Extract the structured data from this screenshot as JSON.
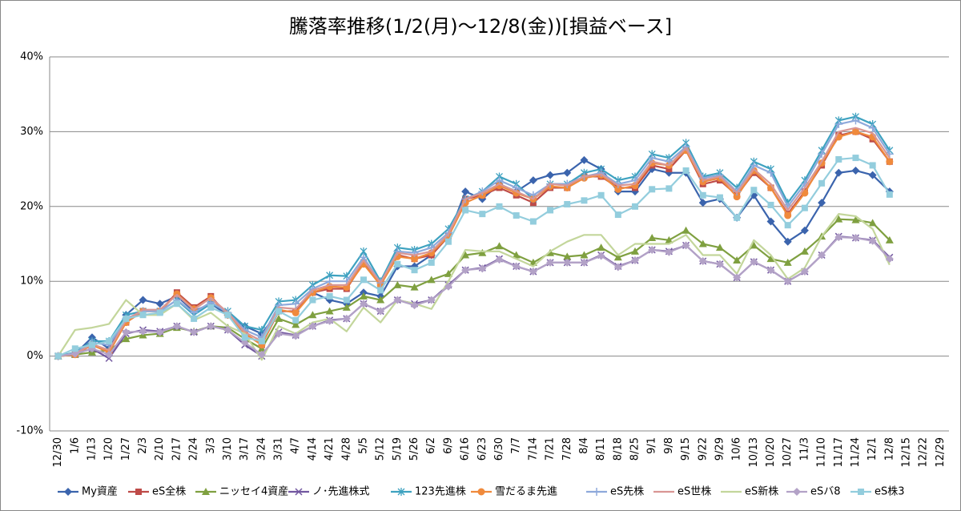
{
  "chart_data": {
    "type": "line",
    "title": "騰落率推移(1/2(月)～12/8(金))[損益ベース]",
    "categories": [
      "12/30",
      "1/6",
      "1/13",
      "1/20",
      "1/27",
      "2/3",
      "2/10",
      "2/17",
      "2/24",
      "3/3",
      "3/10",
      "3/17",
      "3/24",
      "3/31",
      "4/7",
      "4/14",
      "4/21",
      "4/28",
      "5/5",
      "5/12",
      "5/19",
      "5/26",
      "6/2",
      "6/9",
      "6/16",
      "6/23",
      "6/30",
      "7/7",
      "7/14",
      "7/21",
      "7/28",
      "8/4",
      "8/11",
      "8/18",
      "8/25",
      "9/1",
      "9/8",
      "9/15",
      "9/22",
      "9/29",
      "10/6",
      "10/13",
      "10/20",
      "10/27",
      "11/3",
      "11/10",
      "11/17",
      "11/24",
      "12/1",
      "12/8",
      "12/15",
      "12/22",
      "12/29"
    ],
    "ylim": [
      -10,
      40
    ],
    "yticks": [
      {
        "value": -10,
        "label": "-10%"
      },
      {
        "value": 0,
        "label": "0%"
      },
      {
        "value": 10,
        "label": "10%"
      },
      {
        "value": 20,
        "label": "20%"
      },
      {
        "value": 30,
        "label": "30%"
      },
      {
        "value": 40,
        "label": "40%"
      }
    ],
    "grid": true,
    "legend": "bottom",
    "series": [
      {
        "name": "My資産",
        "color": "#3b64ad",
        "marker": "diamond",
        "values": [
          0,
          0.3,
          2.5,
          1.0,
          5.5,
          7.5,
          7.0,
          8.0,
          6.0,
          7.0,
          5.5,
          4.0,
          3.0,
          6.0,
          6.0,
          8.5,
          7.5,
          7.0,
          8.5,
          8.0,
          12.0,
          12.0,
          13.5,
          16.0,
          22.0,
          21.0,
          23.0,
          22.0,
          23.5,
          24.2,
          24.5,
          26.2,
          25.0,
          22.0,
          22.0,
          25.0,
          24.5,
          24.5,
          20.5,
          21.0,
          18.5,
          21.5,
          18.0,
          15.3,
          16.8,
          20.5,
          24.5,
          24.8,
          24.2,
          22.0,
          null,
          null,
          null
        ]
      },
      {
        "name": "eS全株",
        "color": "#be4b48",
        "marker": "square",
        "values": [
          0,
          0.2,
          1.5,
          0.5,
          4.5,
          6,
          6,
          8.5,
          6.5,
          8,
          5.5,
          3,
          1.5,
          6,
          6,
          8.5,
          9,
          9,
          12.5,
          9.5,
          13.5,
          13,
          13.5,
          16,
          21,
          21.5,
          22.5,
          21.5,
          20.5,
          22.5,
          22.5,
          24,
          24,
          22.5,
          22.5,
          25.5,
          25,
          27.5,
          23,
          23.5,
          21.5,
          24.5,
          22.5,
          19,
          22,
          25.5,
          29.5,
          30,
          29,
          26,
          null,
          null,
          null
        ]
      },
      {
        "name": "ニッセイ4資産",
        "color": "#7fa040",
        "marker": "triangle",
        "values": [
          0,
          0.2,
          0.5,
          0.8,
          2.3,
          2.8,
          3.0,
          3.8,
          3.3,
          4.0,
          3.8,
          2.3,
          1.0,
          5.0,
          4.2,
          5.5,
          6.0,
          6.5,
          8.0,
          7.5,
          9.5,
          9.2,
          10.2,
          11.0,
          13.5,
          13.8,
          14.7,
          13.5,
          12.5,
          13.8,
          13.3,
          13.5,
          14.5,
          13.2,
          14.0,
          15.8,
          15.5,
          16.8,
          15.0,
          14.5,
          12.8,
          14.8,
          13.0,
          12.5,
          14.0,
          16.0,
          18.3,
          18.2,
          17.8,
          15.5,
          null,
          null,
          null
        ]
      },
      {
        "name": "ノ･先進株式",
        "color": "#7257a0",
        "marker": "x",
        "values": [
          0,
          0.3,
          1.0,
          -0.3,
          3.0,
          3.5,
          3.3,
          4.0,
          3.2,
          4.0,
          3.5,
          1.5,
          0,
          3.2,
          2.8,
          4.0,
          4.8,
          5.0,
          7.0,
          6.0,
          7.5,
          7.0,
          7.5,
          9.5,
          11.5,
          11.8,
          13.0,
          12.0,
          11.3,
          12.5,
          12.5,
          12.5,
          13.5,
          12.0,
          12.8,
          14.2,
          14.0,
          14.8,
          12.7,
          12.3,
          10.5,
          12.6,
          11.5,
          10.0,
          11.3,
          13.5,
          16.0,
          15.8,
          15.5,
          13.2,
          null,
          null,
          null
        ]
      },
      {
        "name": "123先進株",
        "color": "#3ea2c0",
        "marker": "asterisk",
        "values": [
          0,
          0.5,
          2.0,
          2.0,
          5.5,
          6,
          6,
          7.5,
          5.5,
          7,
          6,
          4,
          3.5,
          7.3,
          7.5,
          9.5,
          10.8,
          10.7,
          14.0,
          10.0,
          14.5,
          14.2,
          15.0,
          17.0,
          21.0,
          22.0,
          24.0,
          23.0,
          21.0,
          23.0,
          23.0,
          24.5,
          25.0,
          23.5,
          24.0,
          27.0,
          26.5,
          28.5,
          24.0,
          24.5,
          22.5,
          26.0,
          25.0,
          20.5,
          23.5,
          27.5,
          31.5,
          32.0,
          31.0,
          27.5,
          null,
          null,
          null
        ]
      },
      {
        "name": "雪だるま先進",
        "color": "#f08a3c",
        "marker": "circle",
        "values": [
          0,
          0.2,
          1.5,
          0.5,
          4.5,
          6,
          6,
          8.3,
          6.3,
          7.8,
          5.5,
          3,
          1.5,
          6.2,
          5.8,
          8.5,
          9.3,
          9.2,
          12.3,
          9.5,
          13.3,
          13,
          13.8,
          16,
          20.5,
          21.5,
          22.8,
          21.8,
          21,
          22.7,
          22.5,
          23.8,
          24.2,
          22.3,
          22.8,
          25.8,
          25.5,
          27.5,
          23.3,
          23.8,
          21.3,
          24.8,
          22.5,
          18.8,
          21.8,
          25.8,
          29.3,
          30.0,
          29.3,
          26.0,
          null,
          null,
          null
        ]
      },
      {
        "name": "eS先株",
        "color": "#8ea9db",
        "marker": "plus",
        "values": [
          0,
          0.4,
          1.8,
          1.5,
          5,
          6,
          6,
          7.5,
          5.8,
          7.2,
          5.8,
          3.5,
          2.5,
          6.8,
          7,
          9,
          10,
          10,
          13.2,
          9.8,
          14,
          13.8,
          14.5,
          16.5,
          21,
          22,
          23.5,
          22.5,
          21.5,
          23,
          23,
          24,
          24.5,
          23,
          23.5,
          26.5,
          26,
          28,
          23.8,
          24.2,
          22,
          25.5,
          24.5,
          20,
          23,
          27,
          31,
          31.5,
          30.5,
          27,
          null,
          null,
          null
        ]
      },
      {
        "name": "eS世株",
        "color": "#d99694",
        "marker": "none",
        "values": [
          0,
          0.3,
          1.6,
          0.8,
          4.8,
          6.2,
          6.2,
          8.2,
          6.2,
          7.8,
          5.8,
          3.2,
          2,
          6.5,
          6.3,
          8.8,
          9.5,
          9.5,
          12.8,
          9.8,
          13.8,
          13.5,
          14,
          16.3,
          21,
          21.8,
          23,
          22,
          21,
          23,
          22.8,
          24,
          24.3,
          22.8,
          23,
          26,
          25.5,
          27.8,
          23.5,
          24,
          21.8,
          25,
          23,
          19.5,
          22.5,
          26,
          30,
          30.5,
          29.8,
          26.5,
          null,
          null,
          null
        ]
      },
      {
        "name": "eS新株",
        "color": "#c3d69b",
        "marker": "none",
        "values": [
          0,
          3.5,
          3.8,
          4.3,
          7.5,
          5.5,
          5.5,
          7.0,
          4.8,
          5.8,
          4.0,
          3.0,
          -0.5,
          4.0,
          3.0,
          4.5,
          5.0,
          3.3,
          6.5,
          4.5,
          7.5,
          7.0,
          6.3,
          10.0,
          14.2,
          14.0,
          14.0,
          13.0,
          12.0,
          14.0,
          15.3,
          16.2,
          16.2,
          13.5,
          15.0,
          15.0,
          15.0,
          16.2,
          13.5,
          13.5,
          11.0,
          15.5,
          13.5,
          10.3,
          11.8,
          16.0,
          19.0,
          18.7,
          17.0,
          12.2,
          null,
          null,
          null
        ]
      },
      {
        "name": "eSバ8",
        "color": "#b3a2c7",
        "marker": "diamond",
        "values": [
          0,
          0.3,
          1.0,
          0.2,
          3.2,
          3.3,
          3.2,
          4.0,
          3.2,
          4.0,
          3.5,
          1.8,
          0.2,
          3.0,
          2.7,
          4.0,
          4.7,
          5.0,
          7.0,
          6.0,
          7.5,
          6.8,
          7.5,
          9.3,
          11.5,
          11.7,
          12.9,
          12.0,
          11.3,
          12.5,
          12.5,
          12.5,
          13.4,
          11.9,
          12.8,
          14.2,
          13.9,
          14.8,
          12.7,
          12.3,
          10.5,
          12.6,
          11.5,
          10.0,
          11.3,
          13.5,
          15.9,
          15.8,
          15.4,
          13.0,
          null,
          null,
          null
        ]
      },
      {
        "name": "eS株3",
        "color": "#93cddd",
        "marker": "square",
        "values": [
          0,
          1.0,
          1.5,
          2.0,
          5.0,
          5.5,
          5.8,
          7.0,
          5.0,
          6.5,
          5.5,
          2.5,
          2.0,
          6.0,
          4.8,
          7.5,
          8.0,
          7.5,
          10.2,
          8.8,
          12.3,
          11.5,
          12.5,
          15.3,
          19.5,
          19.0,
          20.0,
          18.8,
          18.0,
          19.5,
          20.3,
          20.8,
          21.5,
          18.9,
          20.0,
          22.3,
          22.4,
          24.8,
          21.5,
          21.2,
          18.5,
          22.2,
          20.2,
          17.5,
          19.8,
          23.1,
          26.3,
          26.5,
          25.5,
          21.6,
          null,
          null,
          null
        ]
      }
    ]
  }
}
